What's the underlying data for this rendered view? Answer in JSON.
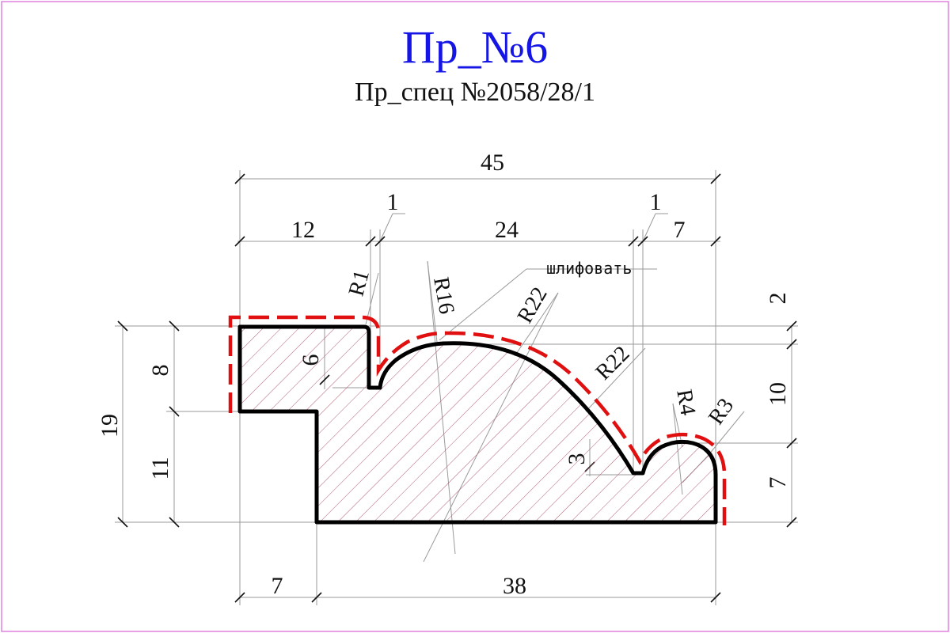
{
  "title": "Пр_№6",
  "subtitle": "Пр_спец №2058/28/1",
  "colors": {
    "title": "#1515e6",
    "outline": "#000000",
    "sanding_line": "#e01010",
    "hatch": "#b06070",
    "border": "#e080e0",
    "dimension": "#999999"
  },
  "dimensions": {
    "overall_width": "45",
    "left_step": "12",
    "gap_left": "1",
    "middle": "24",
    "gap_right": "1",
    "right_part": "7",
    "bottom_left": "7",
    "bottom_right": "38",
    "total_height": "19",
    "upper_height": "8",
    "lower_height": "11",
    "top_offset": "2",
    "right_middle": "10",
    "right_bottom": "7",
    "groove_depth": "6",
    "small_step": "3"
  },
  "radii": {
    "r1": "R1",
    "r16": "R16",
    "r22_upper": "R22",
    "r22_lower": "R22",
    "r4": "R4",
    "r3": "R3"
  },
  "note": "шлифовать"
}
